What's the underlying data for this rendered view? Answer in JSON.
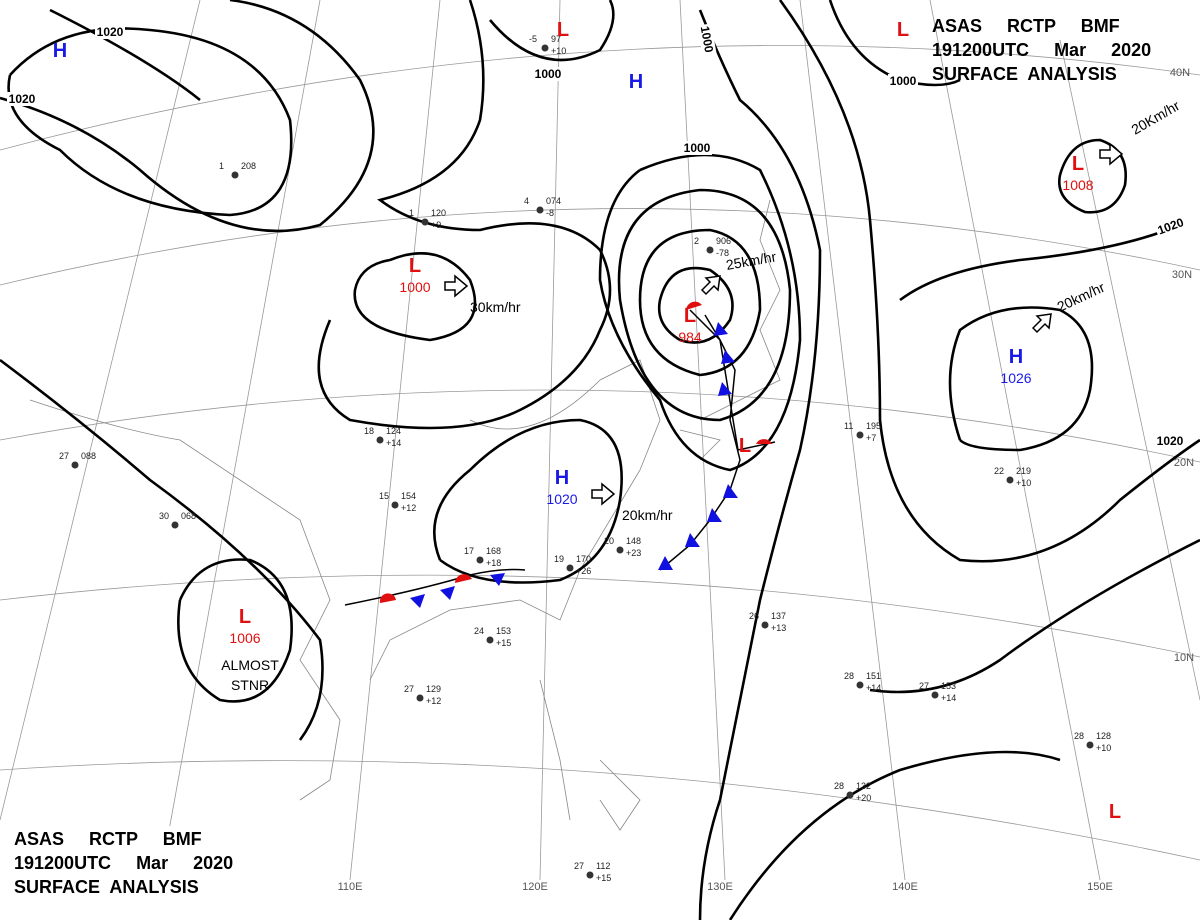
{
  "header": {
    "lines": [
      "ASAS     RCTP     BMF",
      "191200UTC     Mar     2020",
      "SURFACE  ANALYSIS"
    ]
  },
  "centers": [
    {
      "type": "H"
    },
    {
      "type": "L"
    },
    {
      "type": "H"
    },
    {
      "type": "L",
      "pressure": 1000
    },
    {
      "type": "L",
      "pressure": 984
    },
    {
      "type": "L"
    },
    {
      "type": "H",
      "pressure": 1020
    },
    {
      "type": "L",
      "pressure": 1006
    },
    {
      "type": "H",
      "pressure": 1026
    },
    {
      "type": "L",
      "pressure": 1008
    },
    {
      "type": "L"
    },
    {
      "type": "L"
    }
  ],
  "motions": [
    "30km/hr",
    "25km/hr",
    "20km/hr",
    "20km/hr",
    "20Km/hr"
  ],
  "note": "ALMOST\nSTNR",
  "isobar_labels": [
    1020,
    1020,
    1000,
    1000,
    1000,
    1000,
    1020,
    1020
  ],
  "latitudes": [
    "40N",
    "30N",
    "20N",
    "10N"
  ],
  "longitudes": [
    "110E",
    "120E",
    "130E",
    "140E",
    "150E"
  ],
  "stations": [
    {
      "t": "-5",
      "p": "97",
      "d": "+10"
    },
    {
      "t": "1",
      "p": "208",
      "d": ""
    },
    {
      "t": "4",
      "p": "074",
      "d": "-8"
    },
    {
      "t": "1",
      "p": "120",
      "d": "+9"
    },
    {
      "t": "2",
      "p": "906",
      "d": "-78"
    },
    {
      "t": "18",
      "p": "124",
      "d": "+14"
    },
    {
      "t": "15",
      "p": "154",
      "d": "+12"
    },
    {
      "t": "17",
      "p": "168",
      "d": "+18"
    },
    {
      "t": "19",
      "p": "170",
      "d": "+26"
    },
    {
      "t": "20",
      "p": "148",
      "d": "+23"
    },
    {
      "t": "24",
      "p": "153",
      "d": "+15"
    },
    {
      "t": "27",
      "p": "129",
      "d": "+12"
    },
    {
      "t": "26",
      "p": "137",
      "d": "+13"
    },
    {
      "t": "28",
      "p": "151",
      "d": "+14"
    },
    {
      "t": "27",
      "p": "153",
      "d": "+14"
    },
    {
      "t": "28",
      "p": "128",
      "d": "+10"
    },
    {
      "t": "30",
      "p": "068",
      "d": ""
    },
    {
      "t": "27",
      "p": "088",
      "d": ""
    },
    {
      "t": "11",
      "p": "195",
      "d": "+7"
    },
    {
      "t": "22",
      "p": "219",
      "d": "+10"
    },
    {
      "t": "28",
      "p": "132",
      "d": "+20"
    },
    {
      "t": "27",
      "p": "112",
      "d": "+15"
    }
  ]
}
